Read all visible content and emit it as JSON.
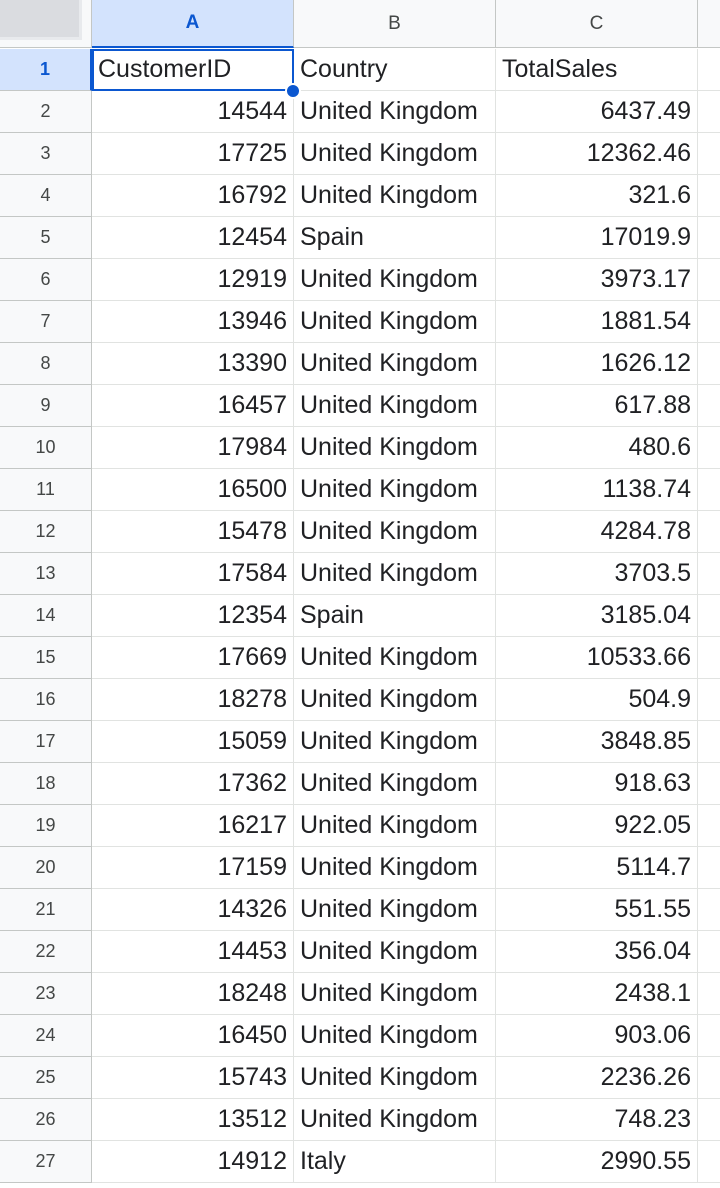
{
  "columns": [
    "A",
    "B",
    "C"
  ],
  "selected_cell": {
    "col": "A",
    "row": 1
  },
  "header_row": [
    "CustomerID",
    "Country",
    "TotalSales"
  ],
  "rows": [
    [
      "14544",
      "United Kingdom",
      "6437.49"
    ],
    [
      "17725",
      "United Kingdom",
      "12362.46"
    ],
    [
      "16792",
      "United Kingdom",
      "321.6"
    ],
    [
      "12454",
      "Spain",
      "17019.9"
    ],
    [
      "12919",
      "United Kingdom",
      "3973.17"
    ],
    [
      "13946",
      "United Kingdom",
      "1881.54"
    ],
    [
      "13390",
      "United Kingdom",
      "1626.12"
    ],
    [
      "16457",
      "United Kingdom",
      "617.88"
    ],
    [
      "17984",
      "United Kingdom",
      "480.6"
    ],
    [
      "16500",
      "United Kingdom",
      "1138.74"
    ],
    [
      "15478",
      "United Kingdom",
      "4284.78"
    ],
    [
      "17584",
      "United Kingdom",
      "3703.5"
    ],
    [
      "12354",
      "Spain",
      "3185.04"
    ],
    [
      "17669",
      "United Kingdom",
      "10533.66"
    ],
    [
      "18278",
      "United Kingdom",
      "504.9"
    ],
    [
      "15059",
      "United Kingdom",
      "3848.85"
    ],
    [
      "17362",
      "United Kingdom",
      "918.63"
    ],
    [
      "16217",
      "United Kingdom",
      "922.05"
    ],
    [
      "17159",
      "United Kingdom",
      "5114.7"
    ],
    [
      "14326",
      "United Kingdom",
      "551.55"
    ],
    [
      "14453",
      "United Kingdom",
      "356.04"
    ],
    [
      "18248",
      "United Kingdom",
      "2438.1"
    ],
    [
      "16450",
      "United Kingdom",
      "903.06"
    ],
    [
      "15743",
      "United Kingdom",
      "2236.26"
    ],
    [
      "13512",
      "United Kingdom",
      "748.23"
    ],
    [
      "14912",
      "Italy",
      "2990.55"
    ]
  ],
  "colors": {
    "accent": "#0b57d0",
    "header_bg": "#f8f9fa",
    "selected_header_bg": "#d3e3fd",
    "grid": "#e1e3e1"
  }
}
